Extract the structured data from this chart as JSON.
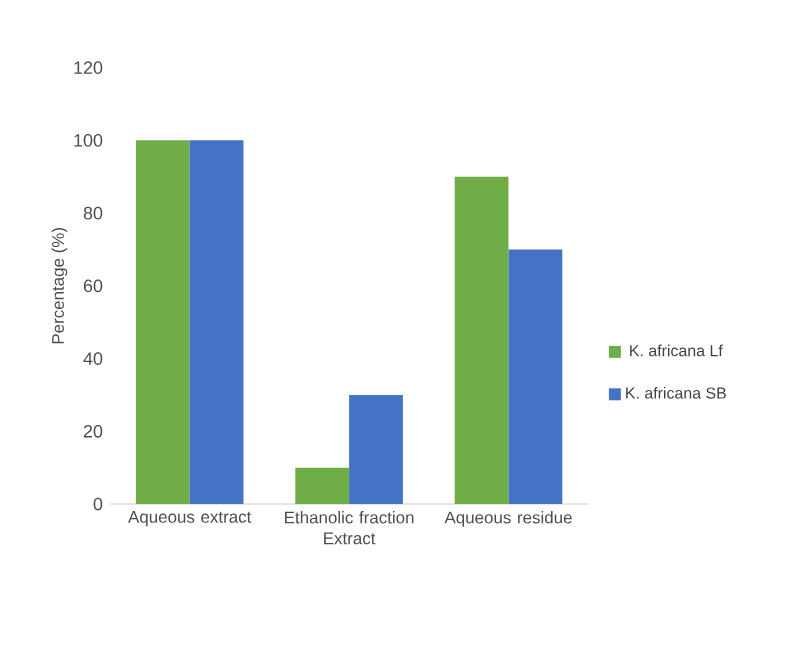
{
  "chart_data": {
    "type": "bar",
    "xlabel": "Extract",
    "ylabel": "Percentage (%)",
    "categories": [
      "Aqueous extract",
      "Ethanolic fraction",
      "Aqueous residue"
    ],
    "series": [
      {
        "name": "K. africana Lf",
        "color": "#70ad47",
        "values": [
          100,
          10,
          90
        ]
      },
      {
        "name": "K. africana SB",
        "color": "#4472c4",
        "values": [
          100,
          30,
          70
        ]
      }
    ],
    "ylim": [
      0,
      120
    ],
    "yticks": [
      0,
      20,
      40,
      60,
      80,
      100,
      120
    ],
    "legend": "right"
  }
}
